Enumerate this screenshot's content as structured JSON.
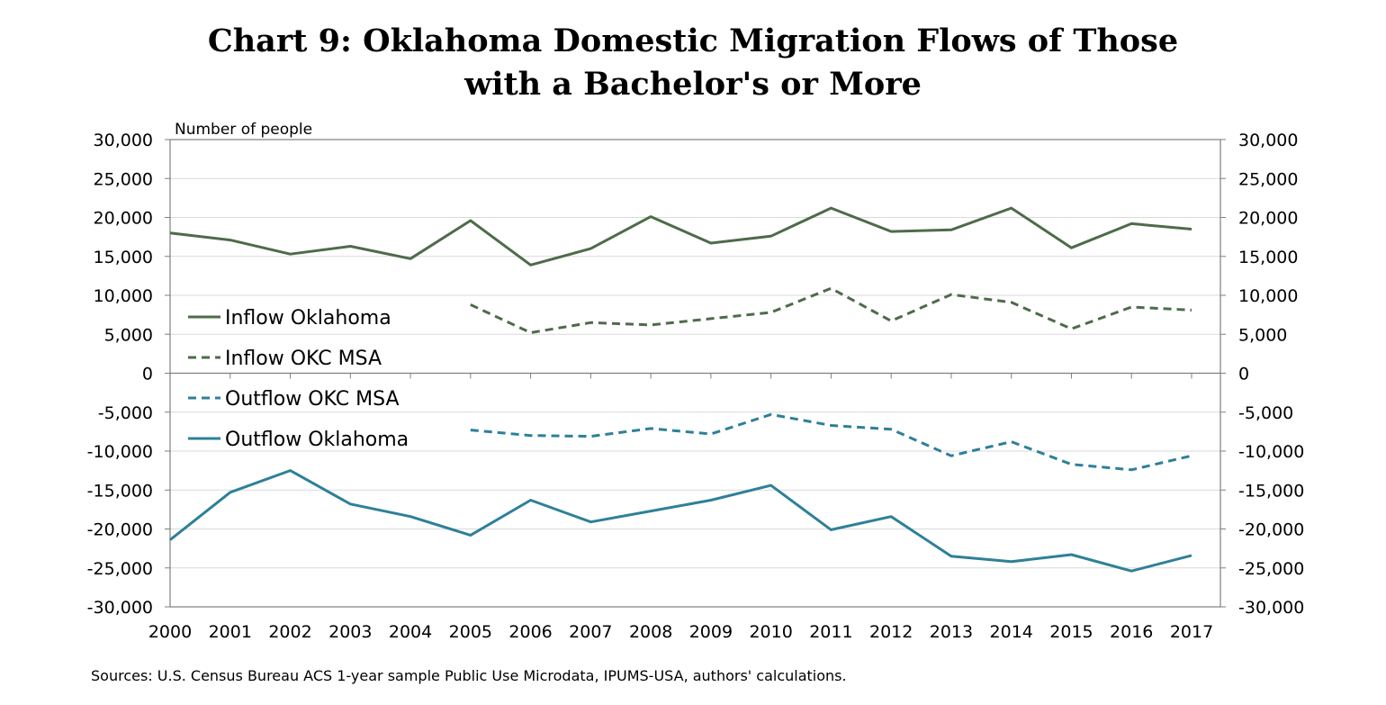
{
  "chart_data": {
    "type": "line",
    "title_lines": [
      "Chart 9: Oklahoma Domestic Migration Flows of Those",
      "with a Bachelor's or More"
    ],
    "ylabel": "Number of people",
    "source": "Sources: U.S. Census Bureau ACS 1-year sample Public Use Microdata, IPUMS-USA, authors' calculations.",
    "x": [
      2000,
      2001,
      2002,
      2003,
      2004,
      2005,
      2006,
      2007,
      2008,
      2009,
      2010,
      2011,
      2012,
      2013,
      2014,
      2015,
      2016,
      2017
    ],
    "ylim": [
      -30000,
      30000
    ],
    "yticks": [
      30000,
      25000,
      20000,
      15000,
      10000,
      5000,
      0,
      -5000,
      -10000,
      -15000,
      -20000,
      -25000,
      -30000
    ],
    "ytick_labels": [
      "30,000",
      "25,000",
      "20,000",
      "15,000",
      "10,000",
      "5,000",
      "0",
      "-5,000",
      "-10,000",
      "-15,000",
      "-20,000",
      "-25,000",
      "-30,000"
    ],
    "grid": true,
    "secondary_axis": "right (same scale)",
    "series": [
      {
        "name": "Inflow Oklahoma",
        "color": "#4e6b4a",
        "style": "solid",
        "values": [
          18000,
          17100,
          15300,
          16300,
          14700,
          19600,
          13900,
          16000,
          20100,
          16700,
          17600,
          21200,
          18200,
          18400,
          21200,
          16100,
          19200,
          18500
        ]
      },
      {
        "name": "Inflow OKC MSA",
        "color": "#4e6b4a",
        "style": "dashed",
        "values": [
          null,
          null,
          null,
          null,
          null,
          8800,
          5200,
          6500,
          6200,
          7000,
          7800,
          10900,
          6700,
          10100,
          9100,
          5700,
          8500,
          8100
        ]
      },
      {
        "name": "Outflow OKC MSA",
        "color": "#2e8098",
        "style": "dashed",
        "values": [
          null,
          null,
          null,
          null,
          null,
          -7300,
          -8000,
          -8100,
          -7100,
          -7800,
          -5300,
          -6700,
          -7200,
          -10600,
          -8800,
          -11700,
          -12400,
          -10600
        ]
      },
      {
        "name": "Outflow Oklahoma",
        "color": "#2e8098",
        "style": "solid",
        "values": [
          -21400,
          -15300,
          -12500,
          -16800,
          -18400,
          -20800,
          -16300,
          -19100,
          -17700,
          -16300,
          -14400,
          -20100,
          -18400,
          -23500,
          -24200,
          -23300,
          -25400,
          -23400
        ]
      }
    ],
    "legend": [
      {
        "label": "Inflow Oklahoma",
        "series": 0
      },
      {
        "label": "Inflow OKC MSA",
        "series": 1
      },
      {
        "label": "Outflow OKC MSA",
        "series": 2
      },
      {
        "label": "Outflow Oklahoma",
        "series": 3
      }
    ],
    "legend_placement": "inside-left, split around zero line"
  }
}
